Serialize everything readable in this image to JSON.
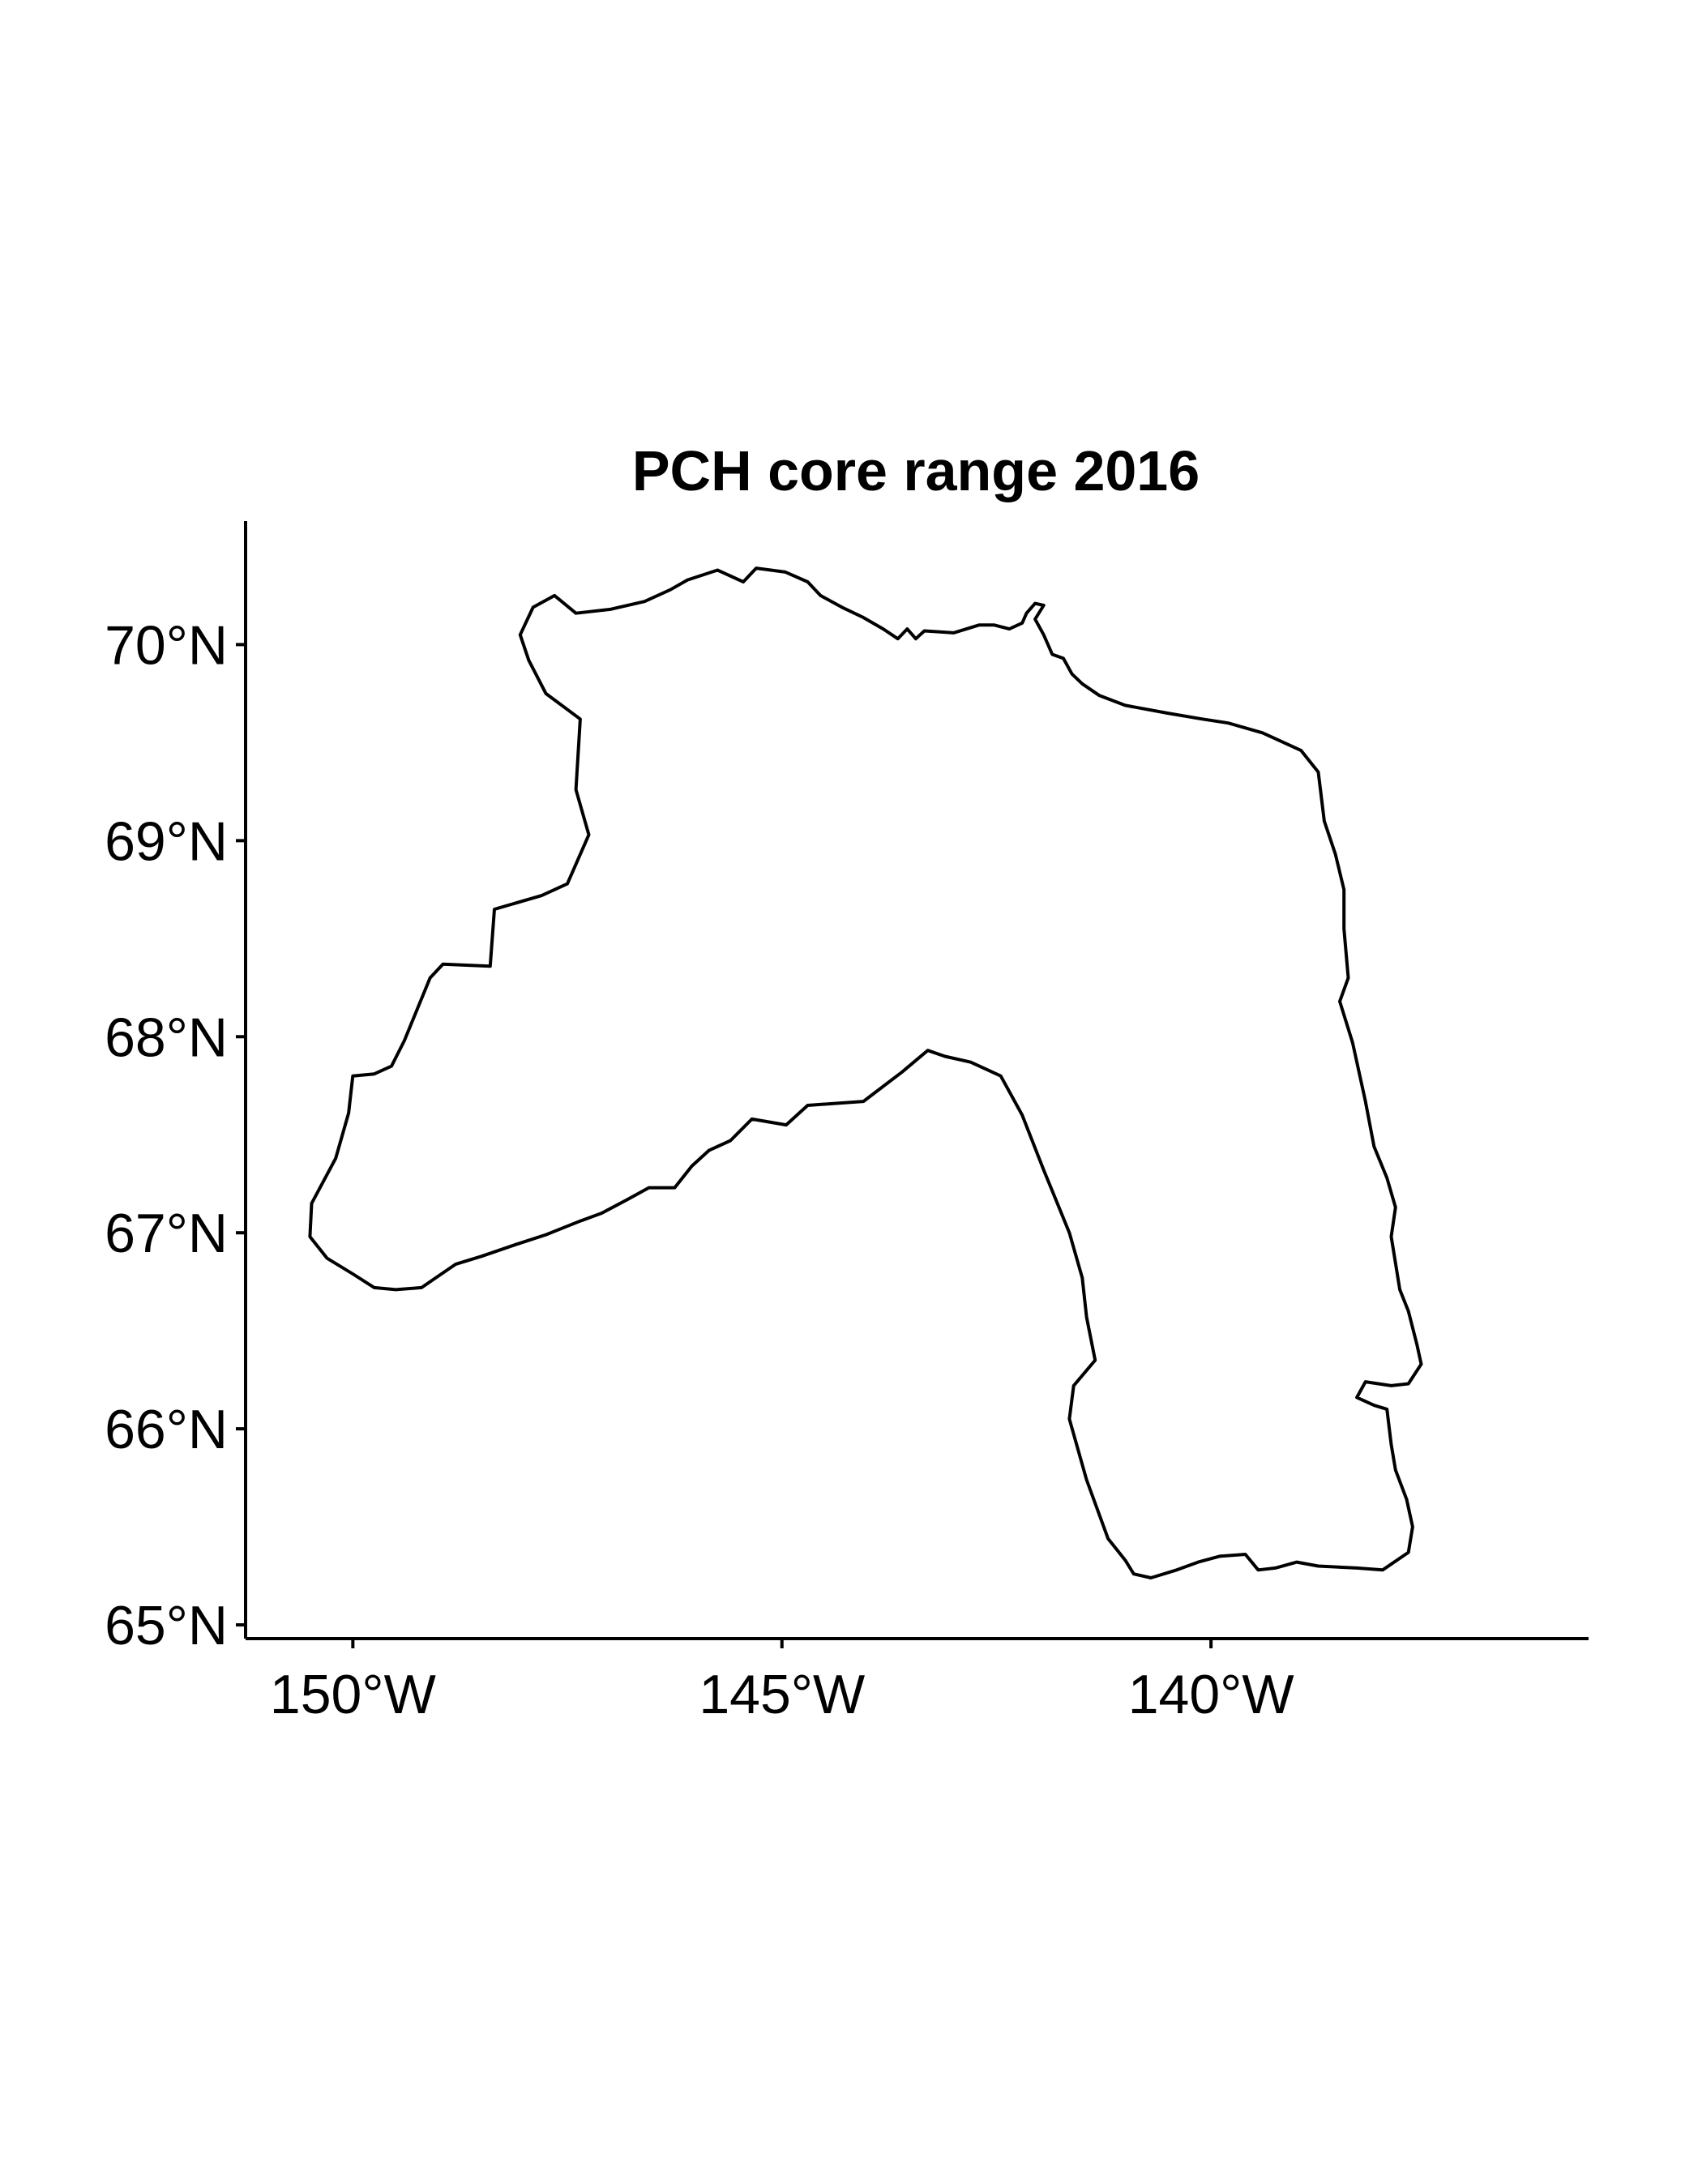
{
  "chart_data": {
    "type": "map",
    "title": "PCH core range 2016",
    "xlabel": "",
    "ylabel": "",
    "xlim": [
      -151.25,
      -135.6
    ],
    "ylim": [
      64.93,
      70.63
    ],
    "grid": false,
    "legend": "none",
    "x_ticks": [
      {
        "value": -150,
        "label": "150°W"
      },
      {
        "value": -145,
        "label": "145°W"
      },
      {
        "value": -140,
        "label": "140°W"
      }
    ],
    "y_ticks": [
      {
        "value": 65,
        "label": "65°N"
      },
      {
        "value": 66,
        "label": "66°N"
      },
      {
        "value": 67,
        "label": "67°N"
      },
      {
        "value": 68,
        "label": "68°N"
      },
      {
        "value": 69,
        "label": "69°N"
      },
      {
        "value": 70,
        "label": "70°N"
      }
    ],
    "series": [
      {
        "color": "#000000",
        "coordinates": [
          [
            -145.3,
            70.39
          ],
          [
            -144.96,
            70.37
          ],
          [
            -144.7,
            70.32
          ],
          [
            -144.55,
            70.25
          ],
          [
            -144.3,
            70.19
          ],
          [
            -144.06,
            70.14
          ],
          [
            -143.82,
            70.08
          ],
          [
            -143.65,
            70.03
          ],
          [
            -143.54,
            70.08
          ],
          [
            -143.44,
            70.03
          ],
          [
            -143.34,
            70.07
          ],
          [
            -143.0,
            70.06
          ],
          [
            -142.7,
            70.1
          ],
          [
            -142.53,
            70.1
          ],
          [
            -142.35,
            70.08
          ],
          [
            -142.2,
            70.11
          ],
          [
            -142.15,
            70.16
          ],
          [
            -142.05,
            70.21
          ],
          [
            -141.95,
            70.2
          ],
          [
            -142.05,
            70.13
          ],
          [
            -141.95,
            70.05
          ],
          [
            -141.85,
            69.95
          ],
          [
            -141.72,
            69.93
          ],
          [
            -141.62,
            69.85
          ],
          [
            -141.5,
            69.8
          ],
          [
            -141.3,
            69.74
          ],
          [
            -141.0,
            69.69
          ],
          [
            -140.5,
            69.65
          ],
          [
            -140.1,
            69.62
          ],
          [
            -139.8,
            69.6
          ],
          [
            -139.4,
            69.55
          ],
          [
            -138.95,
            69.46
          ],
          [
            -138.75,
            69.35
          ],
          [
            -138.68,
            69.1
          ],
          [
            -138.55,
            68.93
          ],
          [
            -138.45,
            68.75
          ],
          [
            -138.45,
            68.55
          ],
          [
            -138.4,
            68.3
          ],
          [
            -138.5,
            68.18
          ],
          [
            -138.35,
            67.97
          ],
          [
            -138.2,
            67.67
          ],
          [
            -138.1,
            67.44
          ],
          [
            -137.95,
            67.28
          ],
          [
            -137.85,
            67.13
          ],
          [
            -137.9,
            66.98
          ],
          [
            -137.8,
            66.71
          ],
          [
            -137.7,
            66.6
          ],
          [
            -137.6,
            66.43
          ],
          [
            -137.55,
            66.33
          ],
          [
            -137.7,
            66.23
          ],
          [
            -137.9,
            66.22
          ],
          [
            -138.2,
            66.24
          ],
          [
            -138.3,
            66.16
          ],
          [
            -138.1,
            66.12
          ],
          [
            -137.95,
            66.1
          ],
          [
            -137.9,
            65.92
          ],
          [
            -137.85,
            65.79
          ],
          [
            -137.72,
            65.64
          ],
          [
            -137.65,
            65.5
          ],
          [
            -137.7,
            65.37
          ],
          [
            -138.0,
            65.28
          ],
          [
            -138.3,
            65.29
          ],
          [
            -138.75,
            65.3
          ],
          [
            -139.0,
            65.32
          ],
          [
            -139.25,
            65.29
          ],
          [
            -139.45,
            65.28
          ],
          [
            -139.6,
            65.36
          ],
          [
            -139.9,
            65.35
          ],
          [
            -140.15,
            65.32
          ],
          [
            -140.4,
            65.28
          ],
          [
            -140.7,
            65.24
          ],
          [
            -140.9,
            65.26
          ],
          [
            -141.0,
            65.33
          ],
          [
            -141.2,
            65.44
          ],
          [
            -141.45,
            65.74
          ],
          [
            -141.65,
            66.05
          ],
          [
            -141.6,
            66.22
          ],
          [
            -141.35,
            66.35
          ],
          [
            -141.45,
            66.57
          ],
          [
            -141.5,
            66.77
          ],
          [
            -141.65,
            67.0
          ],
          [
            -141.8,
            67.16
          ],
          [
            -141.95,
            67.32
          ],
          [
            -142.2,
            67.6
          ],
          [
            -142.45,
            67.8
          ],
          [
            -142.8,
            67.87
          ],
          [
            -143.1,
            67.9
          ],
          [
            -143.3,
            67.93
          ],
          [
            -143.6,
            67.82
          ],
          [
            -143.9,
            67.72
          ],
          [
            -144.05,
            67.67
          ],
          [
            -144.7,
            67.65
          ],
          [
            -144.95,
            67.55
          ],
          [
            -145.35,
            67.58
          ],
          [
            -145.6,
            67.47
          ],
          [
            -145.85,
            67.42
          ],
          [
            -146.05,
            67.34
          ],
          [
            -146.25,
            67.23
          ],
          [
            -146.55,
            67.23
          ],
          [
            -146.8,
            67.17
          ],
          [
            -147.1,
            67.1
          ],
          [
            -147.35,
            67.06
          ],
          [
            -147.75,
            66.99
          ],
          [
            -148.1,
            66.94
          ],
          [
            -148.5,
            66.88
          ],
          [
            -148.8,
            66.84
          ],
          [
            -149.0,
            66.78
          ],
          [
            -149.2,
            66.72
          ],
          [
            -149.5,
            66.71
          ],
          [
            -149.75,
            66.72
          ],
          [
            -150.0,
            66.79
          ],
          [
            -150.3,
            66.87
          ],
          [
            -150.5,
            66.98
          ],
          [
            -150.48,
            67.15
          ],
          [
            -150.2,
            67.38
          ],
          [
            -150.05,
            67.61
          ],
          [
            -150.0,
            67.8
          ],
          [
            -149.75,
            67.81
          ],
          [
            -149.55,
            67.85
          ],
          [
            -149.4,
            67.98
          ],
          [
            -149.1,
            68.3
          ],
          [
            -148.95,
            68.37
          ],
          [
            -148.4,
            68.36
          ],
          [
            -148.35,
            68.65
          ],
          [
            -147.8,
            68.72
          ],
          [
            -147.5,
            68.78
          ],
          [
            -147.25,
            69.03
          ],
          [
            -147.4,
            69.26
          ],
          [
            -147.35,
            69.62
          ],
          [
            -147.75,
            69.75
          ],
          [
            -147.95,
            69.92
          ],
          [
            -148.05,
            70.05
          ],
          [
            -147.9,
            70.19
          ],
          [
            -147.65,
            70.25
          ],
          [
            -147.4,
            70.16
          ],
          [
            -147.0,
            70.18
          ],
          [
            -146.6,
            70.22
          ],
          [
            -146.3,
            70.28
          ],
          [
            -146.1,
            70.33
          ],
          [
            -145.75,
            70.38
          ],
          [
            -145.45,
            70.32
          ],
          [
            -145.3,
            70.39
          ]
        ]
      }
    ]
  }
}
